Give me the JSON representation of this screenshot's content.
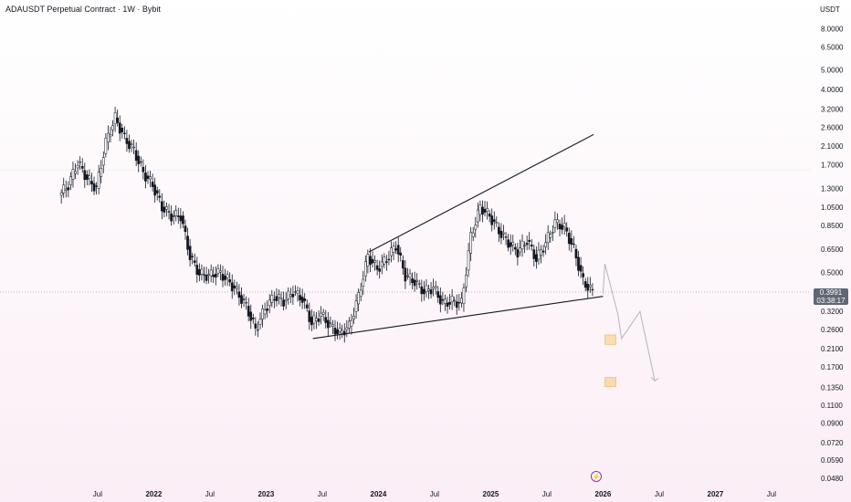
{
  "header": {
    "title": "ADAUSDT Perpetual Contract · 1W · Bybit",
    "currency": "USDT"
  },
  "price_badge": {
    "price": "0.3991",
    "countdown": "03:38:17",
    "color": "#5f6773"
  },
  "event_marker": {
    "icon": "lightning-icon",
    "glyph": "⚡",
    "color": "#9c27b0"
  },
  "colors": {
    "up": "#131722",
    "down": "#131722",
    "trendline": "#131722",
    "projection": "#b2b5be",
    "target_zone": "#f6c879"
  },
  "chart_data": {
    "type": "candlestick",
    "title": "ADAUSDT Perpetual Contract · 1W · Bybit",
    "y_axis": {
      "scale": "log",
      "unit": "USDT",
      "ylim": [
        0.045,
        9.2
      ],
      "ticks": [
        "8.0000",
        "6.5000",
        "5.0000",
        "4.0000",
        "3.2000",
        "2.6000",
        "2.1000",
        "1.7000",
        "1.3000",
        "1.0500",
        "0.8500",
        "0.6500",
        "0.5000",
        "0.3991",
        "0.3200",
        "0.2600",
        "0.2100",
        "0.1700",
        "0.1350",
        "0.1100",
        "0.0900",
        "0.0720",
        "0.0590",
        "0.0480"
      ]
    },
    "x_axis": {
      "ticks": [
        "Jul",
        "2022",
        "Jul",
        "2023",
        "Jul",
        "2024",
        "Jul",
        "2025",
        "Jul",
        "2026",
        "Jul",
        "2027",
        "Jul"
      ],
      "range": [
        "2021-03",
        "2027-09"
      ]
    },
    "price_path": [
      [
        "2021-03",
        1.2
      ],
      [
        "2021-04",
        1.35
      ],
      [
        "2021-05",
        1.75
      ],
      [
        "2021-06",
        1.45
      ],
      [
        "2021-07",
        1.3
      ],
      [
        "2021-08",
        2.2
      ],
      [
        "2021-09",
        2.9
      ],
      [
        "2021-10",
        2.3
      ],
      [
        "2021-11",
        2.0
      ],
      [
        "2021-12",
        1.55
      ],
      [
        "2022-01",
        1.35
      ],
      [
        "2022-02",
        1.05
      ],
      [
        "2022-03",
        0.95
      ],
      [
        "2022-04",
        0.95
      ],
      [
        "2022-05",
        0.6
      ],
      [
        "2022-06",
        0.49
      ],
      [
        "2022-07",
        0.48
      ],
      [
        "2022-08",
        0.5
      ],
      [
        "2022-09",
        0.46
      ],
      [
        "2022-10",
        0.4
      ],
      [
        "2022-11",
        0.34
      ],
      [
        "2022-12",
        0.26
      ],
      [
        "2023-01",
        0.33
      ],
      [
        "2023-02",
        0.38
      ],
      [
        "2023-03",
        0.36
      ],
      [
        "2023-04",
        0.4
      ],
      [
        "2023-05",
        0.37
      ],
      [
        "2023-06",
        0.28
      ],
      [
        "2023-07",
        0.31
      ],
      [
        "2023-08",
        0.27
      ],
      [
        "2023-09",
        0.25
      ],
      [
        "2023-10",
        0.27
      ],
      [
        "2023-11",
        0.38
      ],
      [
        "2023-12",
        0.6
      ],
      [
        "2024-01",
        0.52
      ],
      [
        "2024-02",
        0.58
      ],
      [
        "2024-03",
        0.68
      ],
      [
        "2024-04",
        0.48
      ],
      [
        "2024-05",
        0.45
      ],
      [
        "2024-06",
        0.4
      ],
      [
        "2024-07",
        0.42
      ],
      [
        "2024-08",
        0.35
      ],
      [
        "2024-09",
        0.36
      ],
      [
        "2024-10",
        0.35
      ],
      [
        "2024-11",
        0.75
      ],
      [
        "2024-12",
        1.05
      ],
      [
        "2025-01",
        0.95
      ],
      [
        "2025-02",
        0.8
      ],
      [
        "2025-03",
        0.7
      ],
      [
        "2025-04",
        0.63
      ],
      [
        "2025-05",
        0.72
      ],
      [
        "2025-06",
        0.58
      ],
      [
        "2025-07",
        0.7
      ],
      [
        "2025-08",
        0.88
      ],
      [
        "2025-09",
        0.83
      ],
      [
        "2025-10",
        0.65
      ],
      [
        "2025-11",
        0.45
      ],
      [
        "2025-12",
        0.3991
      ]
    ],
    "upper_trendline": [
      [
        "2023-12",
        0.63
      ],
      [
        "2025-12",
        2.4
      ]
    ],
    "lower_trendline": [
      [
        "2023-06",
        0.235
      ],
      [
        "2026-01",
        0.38
      ]
    ],
    "projection_path": [
      [
        "2026-01",
        0.39
      ],
      [
        "2026-01",
        0.55
      ],
      [
        "2026-02",
        0.31
      ],
      [
        "2026-02",
        0.235
      ],
      [
        "2026-03",
        0.32
      ],
      [
        "2026-04",
        0.145
      ]
    ],
    "target_zones": [
      {
        "from": "2026-01",
        "to": "2026-02",
        "low": 0.22,
        "high": 0.245
      },
      {
        "from": "2026-01",
        "to": "2026-02",
        "low": 0.136,
        "high": 0.151
      }
    ]
  }
}
